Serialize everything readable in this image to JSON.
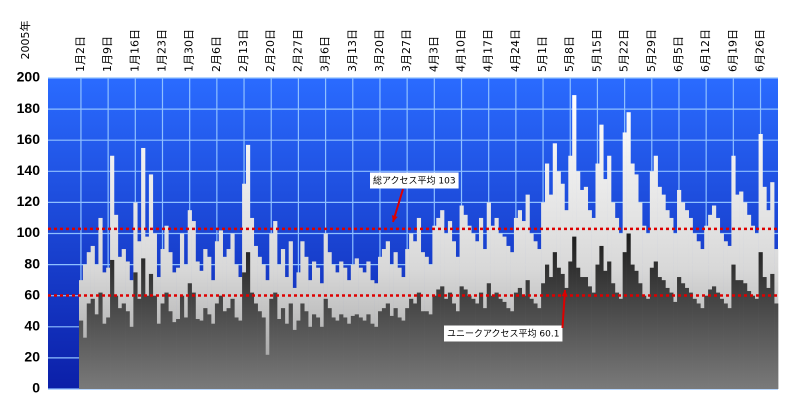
{
  "chart_data": {
    "type": "bar",
    "year_label": "2005年",
    "categories": [
      "1月2日",
      null,
      null,
      null,
      null,
      null,
      null,
      "1月9日",
      null,
      null,
      null,
      null,
      null,
      null,
      "1月16日",
      null,
      null,
      null,
      null,
      null,
      null,
      "1月23日",
      null,
      null,
      null,
      null,
      null,
      null,
      "1月30日",
      null,
      null,
      null,
      null,
      null,
      null,
      "2月6日",
      null,
      null,
      null,
      null,
      null,
      null,
      "2月13日",
      null,
      null,
      null,
      null,
      null,
      null,
      "2月20日",
      null,
      null,
      null,
      null,
      null,
      null,
      "2月27日",
      null,
      null,
      null,
      null,
      null,
      null,
      "3月6日",
      null,
      null,
      null,
      null,
      null,
      null,
      "3月13日",
      null,
      null,
      null,
      null,
      null,
      null,
      "3月20日",
      null,
      null,
      null,
      null,
      null,
      null,
      "3月27日",
      null,
      null,
      null,
      null,
      null,
      null,
      "4月3日",
      null,
      null,
      null,
      null,
      null,
      null,
      "4月10日",
      null,
      null,
      null,
      null,
      null,
      null,
      "4月17日",
      null,
      null,
      null,
      null,
      null,
      null,
      "4月24日",
      null,
      null,
      null,
      null,
      null,
      null,
      "5月1日",
      null,
      null,
      null,
      null,
      null,
      null,
      "5月8日",
      null,
      null,
      null,
      null,
      null,
      null,
      "5月15日",
      null,
      null,
      null,
      null,
      null,
      null,
      "5月22日",
      null,
      null,
      null,
      null,
      null,
      null,
      "5月29日",
      null,
      null,
      null,
      null,
      null,
      null,
      "6月5日",
      null,
      null,
      null,
      null,
      null,
      null,
      "6月12日",
      null,
      null,
      null,
      null,
      null,
      null,
      "6月19日",
      null,
      null,
      null,
      null,
      null,
      null,
      "6月26日",
      null,
      null,
      null,
      null
    ],
    "series": [
      {
        "name": "総アクセス",
        "color": "#ffffff",
        "values": [
          70,
          80,
          88,
          92,
          80,
          110,
          75,
          78,
          150,
          112,
          85,
          90,
          82,
          70,
          120,
          95,
          155,
          98,
          138,
          100,
          72,
          90,
          105,
          88,
          75,
          78,
          100,
          80,
          115,
          108,
          82,
          76,
          90,
          85,
          70,
          95,
          102,
          85,
          90,
          100,
          80,
          72,
          132,
          157,
          110,
          92,
          85,
          80,
          70,
          100,
          108,
          80,
          90,
          72,
          95,
          65,
          75,
          95,
          85,
          70,
          82,
          78,
          68,
          100,
          88,
          80,
          75,
          82,
          78,
          70,
          80,
          84,
          78,
          75,
          82,
          70,
          68,
          85,
          90,
          95,
          80,
          88,
          78,
          72,
          90,
          100,
          95,
          110,
          88,
          85,
          80,
          105,
          110,
          115,
          100,
          108,
          95,
          85,
          118,
          112,
          105,
          100,
          95,
          110,
          90,
          120,
          105,
          110,
          100,
          98,
          92,
          88,
          110,
          115,
          108,
          125,
          100,
          95,
          90,
          120,
          145,
          125,
          158,
          140,
          132,
          115,
          150,
          189,
          140,
          128,
          130,
          115,
          110,
          145,
          170,
          135,
          150,
          120,
          110,
          100,
          165,
          178,
          145,
          138,
          120,
          105,
          100,
          140,
          150,
          130,
          125,
          115,
          110,
          100,
          128,
          120,
          115,
          110,
          100,
          95,
          90,
          105,
          112,
          118,
          110,
          100,
          95,
          92,
          150,
          125,
          127,
          120,
          112,
          105,
          100,
          164,
          130,
          115,
          133,
          90
        ]
      },
      {
        "name": "ユニークアクセス",
        "color": "#333333",
        "values": [
          44,
          33,
          55,
          58,
          48,
          62,
          42,
          46,
          83,
          60,
          52,
          55,
          50,
          40,
          75,
          58,
          84,
          60,
          74,
          60,
          42,
          55,
          62,
          50,
          43,
          45,
          60,
          46,
          68,
          62,
          45,
          44,
          52,
          48,
          42,
          55,
          60,
          50,
          52,
          58,
          46,
          44,
          75,
          88,
          62,
          55,
          50,
          46,
          22,
          58,
          62,
          45,
          52,
          42,
          55,
          38,
          44,
          55,
          50,
          40,
          48,
          46,
          40,
          58,
          52,
          46,
          44,
          48,
          46,
          42,
          47,
          48,
          46,
          44,
          48,
          42,
          40,
          50,
          52,
          55,
          47,
          52,
          46,
          44,
          52,
          58,
          55,
          62,
          50,
          50,
          48,
          60,
          64,
          66,
          58,
          62,
          55,
          50,
          66,
          64,
          60,
          58,
          55,
          62,
          52,
          68,
          60,
          62,
          58,
          56,
          52,
          50,
          62,
          65,
          60,
          70,
          58,
          55,
          52,
          68,
          80,
          72,
          88,
          78,
          74,
          65,
          82,
          98,
          78,
          72,
          72,
          66,
          62,
          80,
          92,
          76,
          82,
          68,
          62,
          58,
          88,
          100,
          80,
          76,
          68,
          60,
          58,
          78,
          82,
          72,
          70,
          65,
          62,
          56,
          72,
          68,
          65,
          62,
          58,
          55,
          52,
          60,
          64,
          66,
          62,
          58,
          55,
          52,
          80,
          70,
          70,
          68,
          63,
          60,
          58,
          88,
          72,
          65,
          74,
          55
        ]
      }
    ],
    "reference_lines": [
      {
        "label": "総アクセス平均 103",
        "value": 103,
        "color": "#dd0000"
      },
      {
        "label": "ユニークアクセス平均 60.1",
        "value": 60.1,
        "color": "#dd0000"
      }
    ],
    "ylim": [
      0,
      200
    ],
    "yticks": [
      0,
      20,
      40,
      60,
      80,
      100,
      120,
      140,
      160,
      180,
      200
    ],
    "grid": true
  }
}
